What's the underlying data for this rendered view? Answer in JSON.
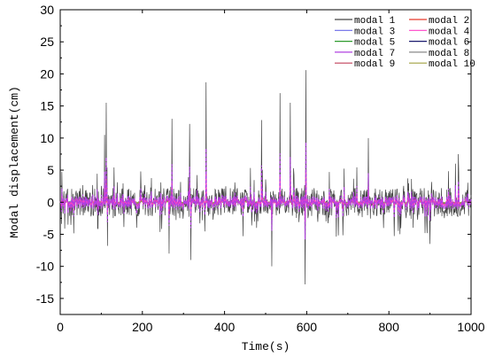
{
  "chart_data": {
    "type": "line",
    "xlabel": "Time(s)",
    "ylabel": "Modal displacement(cm)",
    "xlim": [
      0,
      1000
    ],
    "ylim": [
      -17.5,
      30
    ],
    "xticks": [
      0,
      200,
      400,
      600,
      800,
      1000
    ],
    "yticks": [
      -15,
      -10,
      -5,
      0,
      5,
      10,
      15,
      20,
      25,
      30
    ],
    "xtick_labels": [
      "0",
      "200",
      "400",
      "600",
      "800",
      "1000"
    ],
    "ytick_labels": [
      "-15",
      "-10",
      "-5",
      "0",
      "5",
      "10",
      "15",
      "20",
      "25",
      "30"
    ],
    "grid": false,
    "legend_position": "top-right",
    "series": [
      {
        "name": "modal 1",
        "color": "#444444",
        "amplitude": 1.0
      },
      {
        "name": "modal 2",
        "color": "#e8392b",
        "amplitude": 0.12
      },
      {
        "name": "modal 3",
        "color": "#6a6ae8",
        "amplitude": 0.2
      },
      {
        "name": "modal 4",
        "color": "#ff40c8",
        "amplitude": 0.25
      },
      {
        "name": "modal 5",
        "color": "#2e9a2e",
        "amplitude": 0.1
      },
      {
        "name": "modal 6",
        "color": "#1a1a6e",
        "amplitude": 0.08
      },
      {
        "name": "modal 7",
        "color": "#b040e0",
        "amplitude": 0.45
      },
      {
        "name": "modal 8",
        "color": "#8a8a8a",
        "amplitude": 0.06
      },
      {
        "name": "modal 9",
        "color": "#c0405a",
        "amplitude": 0.07
      },
      {
        "name": "modal 10",
        "color": "#a0a040",
        "amplitude": 0.05
      }
    ],
    "peaks": [
      {
        "x": 112,
        "y": 15.5
      },
      {
        "x": 272,
        "y": 13.0
      },
      {
        "x": 315,
        "y": 12.2
      },
      {
        "x": 355,
        "y": 18.7
      },
      {
        "x": 490,
        "y": 12.8
      },
      {
        "x": 535,
        "y": 17.0
      },
      {
        "x": 560,
        "y": 15.5
      },
      {
        "x": 598,
        "y": 20.6
      },
      {
        "x": 750,
        "y": 10.0
      },
      {
        "x": 962,
        "y": 6.0
      },
      {
        "x": 318,
        "y": -9.0
      },
      {
        "x": 515,
        "y": -10.0
      },
      {
        "x": 596,
        "y": -12.8
      },
      {
        "x": 265,
        "y": -8.0
      },
      {
        "x": 115,
        "y": -6.8
      },
      {
        "x": 900,
        "y": -6.5
      }
    ]
  }
}
